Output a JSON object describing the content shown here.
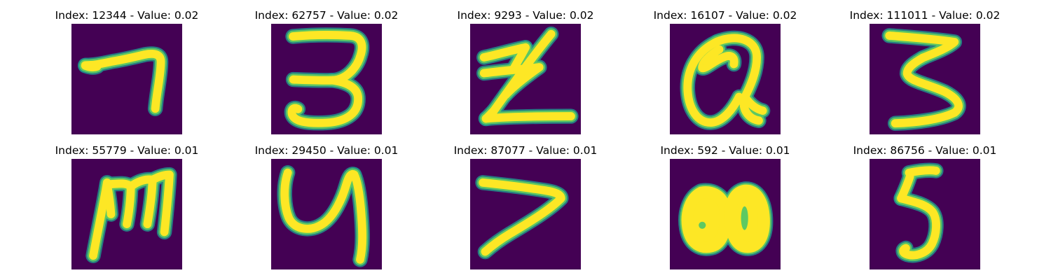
{
  "colors": {
    "background": "#440154",
    "stroke_core": "#fde725",
    "stroke_mid": "#5ec962",
    "stroke_edge": "#21918c"
  },
  "panels": [
    {
      "index": "12344",
      "value": "0.02",
      "title": "Index: 12344 - Value: 0.02",
      "glyph": "7"
    },
    {
      "index": "62757",
      "value": "0.02",
      "title": "Index: 62757 - Value: 0.02",
      "glyph": "3"
    },
    {
      "index": "9293",
      "value": "0.02",
      "title": "Index: 9293 - Value: 0.02",
      "glyph": "Z"
    },
    {
      "index": "16107",
      "value": "0.02",
      "title": "Index: 16107 - Value: 0.02",
      "glyph": "Q"
    },
    {
      "index": "111011",
      "value": "0.02",
      "title": "Index: 111011 - Value: 0.02",
      "glyph": "3"
    },
    {
      "index": "55779",
      "value": "0.01",
      "title": "Index: 55779 - Value: 0.01",
      "glyph": "m"
    },
    {
      "index": "29450",
      "value": "0.01",
      "title": "Index: 29450 - Value: 0.01",
      "glyph": "y"
    },
    {
      "index": "87077",
      "value": "0.01",
      "title": "Index: 87077 - Value: 0.01",
      "glyph": "7"
    },
    {
      "index": "592",
      "value": "0.01",
      "title": "Index: 592 - Value: 0.01",
      "glyph": "8"
    },
    {
      "index": "86756",
      "value": "0.01",
      "title": "Index: 86756 - Value: 0.01",
      "glyph": "5"
    }
  ]
}
